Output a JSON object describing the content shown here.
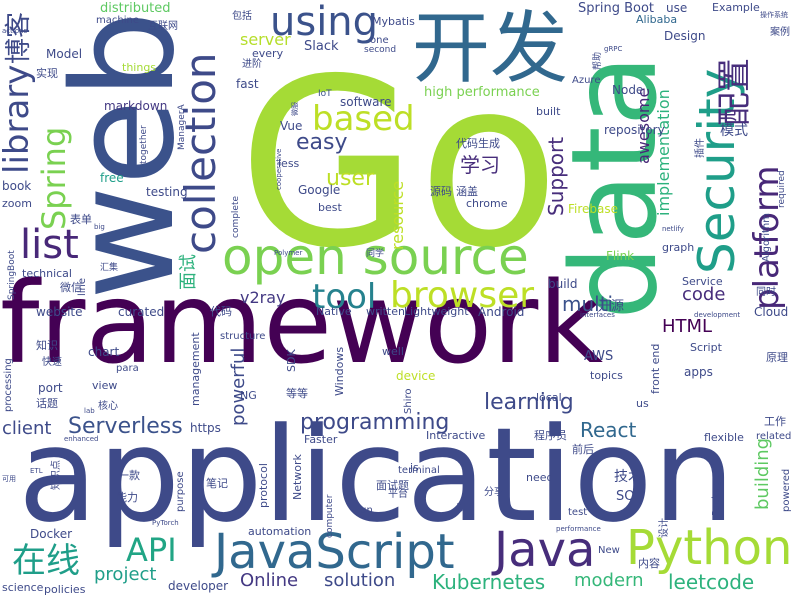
{
  "words": [
    {
      "text": "Go",
      "color": "#a5db36"
    },
    {
      "text": "framework",
      "color": "#440154"
    },
    {
      "text": "application",
      "color": "#3e4a89"
    },
    {
      "text": "web",
      "color": "#3b528b"
    },
    {
      "text": "data",
      "color": "#35b779"
    },
    {
      "text": "开发",
      "color": "#31688e"
    },
    {
      "text": "open source",
      "color": "#7ad151"
    },
    {
      "text": "JavaScript",
      "color": "#31688e"
    },
    {
      "text": "Java",
      "color": "#472d7b"
    },
    {
      "text": "Python",
      "color": "#a5db36"
    },
    {
      "text": "Security",
      "color": "#1f9e89"
    },
    {
      "text": "collection",
      "color": "#3e4a89"
    },
    {
      "text": "using",
      "color": "#3b528b"
    },
    {
      "text": "list",
      "color": "#482878"
    },
    {
      "text": "library",
      "color": "#3e4a89"
    },
    {
      "text": "browser",
      "color": "#bddf26"
    },
    {
      "text": "tool",
      "color": "#26828e"
    },
    {
      "text": "based",
      "color": "#bddf26"
    },
    {
      "text": "platform",
      "color": "#482878"
    },
    {
      "text": "配置",
      "color": "#472d7b"
    },
    {
      "text": "博客",
      "color": "#3e4a89"
    },
    {
      "text": "Spring",
      "color": "#7ad151"
    },
    {
      "text": "在线",
      "color": "#1f9e89"
    },
    {
      "text": "API",
      "color": "#21a585"
    },
    {
      "text": "programming",
      "color": "#3e4a89"
    },
    {
      "text": "Serverless",
      "color": "#3b528b"
    },
    {
      "text": "Kubernetes",
      "color": "#2db27d"
    },
    {
      "text": "leetcode",
      "color": "#2db27d"
    },
    {
      "text": "learning",
      "color": "#3e4a89"
    },
    {
      "text": "React",
      "color": "#31688e"
    },
    {
      "text": "user",
      "color": "#bddf26"
    },
    {
      "text": "easy",
      "color": "#3e4a89"
    },
    {
      "text": "HTML",
      "color": "#440154"
    },
    {
      "text": "code",
      "color": "#472d7b"
    },
    {
      "text": "multi",
      "color": "#3b528b"
    },
    {
      "text": "building",
      "color": "#5ec962"
    },
    {
      "text": "project",
      "color": "#1f9e89"
    },
    {
      "text": "solution",
      "color": "#3e4a89"
    },
    {
      "text": "modern",
      "color": "#35b779"
    },
    {
      "text": "Online",
      "color": "#443983"
    },
    {
      "text": "powerful",
      "color": "#3e4a89"
    },
    {
      "text": "client",
      "color": "#3e4a89"
    },
    {
      "text": "Support",
      "color": "#472d7b"
    },
    {
      "text": "学习",
      "color": "#472d7b"
    },
    {
      "text": "implementation",
      "color": "#2db27d"
    },
    {
      "text": "resource",
      "color": "#bddf26"
    },
    {
      "text": "面试",
      "color": "#2db27d"
    },
    {
      "text": "v2ray",
      "color": "#443983"
    },
    {
      "text": "server",
      "color": "#b5de2b"
    },
    {
      "text": "awesome",
      "color": "#482878"
    },
    {
      "text": "Spring Boot",
      "color": "#3e4a89"
    },
    {
      "text": "distributed",
      "color": "#5ec962"
    },
    {
      "text": "Slack",
      "color": "#3e4a89"
    },
    {
      "text": "Mybatis",
      "color": "#3e4a89"
    },
    {
      "text": "Example",
      "color": "#3e4a89"
    },
    {
      "text": "Alibaba",
      "color": "#31688e"
    },
    {
      "text": "Design",
      "color": "#3e4a89"
    },
    {
      "text": "Model",
      "color": "#3e4a89"
    },
    {
      "text": "things",
      "color": "#a5db36"
    },
    {
      "text": "markdown",
      "color": "#443983"
    },
    {
      "text": "fast",
      "color": "#3e4a89"
    },
    {
      "text": "every",
      "color": "#3e4a89"
    },
    {
      "text": "IoT",
      "color": "#3b528b"
    },
    {
      "text": "software",
      "color": "#3e4a89"
    },
    {
      "text": "high performance",
      "color": "#7ad151"
    },
    {
      "text": "Node",
      "color": "#3e4a89"
    },
    {
      "text": "Vue",
      "color": "#3e4a89"
    },
    {
      "text": "less",
      "color": "#3e4a89"
    },
    {
      "text": "Google",
      "color": "#3e4a89"
    },
    {
      "text": "best",
      "color": "#3e4a89"
    },
    {
      "text": "chrome",
      "color": "#3e4a89"
    },
    {
      "text": "Firebase",
      "color": "#bddf26"
    },
    {
      "text": "Flink",
      "color": "#7ad151"
    },
    {
      "text": "repository",
      "color": "#3e4a89"
    },
    {
      "text": "use",
      "color": "#3e4a89"
    },
    {
      "text": "built",
      "color": "#3e4a89"
    },
    {
      "text": "模式",
      "color": "#3e4a89"
    },
    {
      "text": "实现",
      "color": "#3e4a89"
    },
    {
      "text": "book",
      "color": "#3e4a89"
    },
    {
      "text": "free",
      "color": "#1f9e89"
    },
    {
      "text": "testing",
      "color": "#3e4a89"
    },
    {
      "text": "zoom",
      "color": "#3e4a89"
    },
    {
      "text": "表单",
      "color": "#3e4a89"
    },
    {
      "text": "technical",
      "color": "#3e4a89"
    },
    {
      "text": "website",
      "color": "#3e4a89"
    },
    {
      "text": "curated",
      "color": "#3e4a89"
    },
    {
      "text": "代码",
      "color": "#3e4a89"
    },
    {
      "text": "structure",
      "color": "#3e4a89"
    },
    {
      "text": "chart",
      "color": "#3e4a89"
    },
    {
      "text": "知识",
      "color": "#3e4a89"
    },
    {
      "text": "port",
      "color": "#3e4a89"
    },
    {
      "text": "view",
      "color": "#3e4a89"
    },
    {
      "text": "话题",
      "color": "#3e4a89"
    },
    {
      "text": "processing",
      "color": "#3e4a89"
    },
    {
      "text": "management",
      "color": "#3e4a89"
    },
    {
      "text": "核心",
      "color": "#3e4a89"
    },
    {
      "text": "https",
      "color": "#3e4a89"
    },
    {
      "text": "NG",
      "color": "#3e4a89"
    },
    {
      "text": "purpose",
      "color": "#3e4a89"
    },
    {
      "text": "能力",
      "color": "#3e4a89"
    },
    {
      "text": "一款",
      "color": "#3e4a89"
    },
    {
      "text": "笔记",
      "color": "#3e4a89"
    },
    {
      "text": "Docker",
      "color": "#3e4a89"
    },
    {
      "text": "science",
      "color": "#3e4a89"
    },
    {
      "text": "policies",
      "color": "#3e4a89"
    },
    {
      "text": "developer",
      "color": "#3e4a89"
    },
    {
      "text": "automation",
      "color": "#3e4a89"
    },
    {
      "text": "Network",
      "color": "#3e4a89"
    },
    {
      "text": "protocol",
      "color": "#3e4a89"
    },
    {
      "text": "Faster",
      "color": "#3e4a89"
    },
    {
      "text": "Windows",
      "color": "#3e4a89"
    },
    {
      "text": "SDK",
      "color": "#3e4a89"
    },
    {
      "text": "para",
      "color": "#3e4a89"
    },
    {
      "text": "well",
      "color": "#3e4a89"
    },
    {
      "text": "device",
      "color": "#bddf26"
    },
    {
      "text": "Shiro",
      "color": "#3e4a89"
    },
    {
      "text": "local",
      "color": "#3e4a89"
    },
    {
      "text": "Interactive",
      "color": "#3e4a89"
    },
    {
      "text": "程序员",
      "color": "#3e4a89"
    },
    {
      "text": "前后",
      "color": "#3e4a89"
    },
    {
      "text": "技术",
      "color": "#3e4a89"
    },
    {
      "text": "SQL",
      "color": "#3e4a89"
    },
    {
      "text": "need",
      "color": "#3e4a89"
    },
    {
      "text": "面试题",
      "color": "#3e4a89"
    },
    {
      "text": "分享",
      "color": "#3e4a89"
    },
    {
      "text": "3D",
      "color": "#3e4a89"
    },
    {
      "text": "test",
      "color": "#3e4a89"
    },
    {
      "text": "run",
      "color": "#3e4a89"
    },
    {
      "text": "AWS",
      "color": "#3e4a89"
    },
    {
      "text": "apps",
      "color": "#3e4a89"
    },
    {
      "text": "topics",
      "color": "#3e4a89"
    },
    {
      "text": "front end",
      "color": "#3e4a89"
    },
    {
      "text": "Script",
      "color": "#3e4a89"
    },
    {
      "text": "原理",
      "color": "#3e4a89"
    },
    {
      "text": "工作",
      "color": "#3e4a89"
    },
    {
      "text": "related",
      "color": "#3e4a89"
    },
    {
      "text": "flexible",
      "color": "#3e4a89"
    },
    {
      "text": "Package",
      "color": "#3e4a89"
    },
    {
      "text": "powered",
      "color": "#3e4a89"
    },
    {
      "text": "内容",
      "color": "#3e4a89"
    },
    {
      "text": "New",
      "color": "#3e4a89"
    },
    {
      "text": "设计",
      "color": "#3e4a89"
    },
    {
      "text": "Service",
      "color": "#3e4a89"
    },
    {
      "text": "Cloud",
      "color": "#3e4a89"
    },
    {
      "text": "同时",
      "color": "#3e4a89"
    },
    {
      "text": "开源",
      "color": "#3e4a89"
    },
    {
      "text": "Android",
      "color": "#3e4a89"
    },
    {
      "text": "written",
      "color": "#3e4a89"
    },
    {
      "text": "Lightweight",
      "color": "#3e4a89"
    },
    {
      "text": "Native",
      "color": "#3e4a89"
    },
    {
      "text": "build",
      "color": "#3e4a89"
    },
    {
      "text": "graph",
      "color": "#3e4a89"
    },
    {
      "text": "Algorithm",
      "color": "#3e4a89"
    },
    {
      "text": "required",
      "color": "#3e4a89"
    },
    {
      "text": "代码生成",
      "color": "#3e4a89"
    },
    {
      "text": "源码",
      "color": "#3e4a89"
    },
    {
      "text": "涵盖",
      "color": "#3e4a89"
    },
    {
      "text": "插件",
      "color": "#3e4a89"
    },
    {
      "text": "案例",
      "color": "#3e4a89"
    },
    {
      "text": "包括",
      "color": "#3e4a89"
    },
    {
      "text": "互联网",
      "color": "#3e4a89"
    },
    {
      "text": "machine",
      "color": "#3e4a89"
    },
    {
      "text": "进阶",
      "color": "#3e4a89"
    },
    {
      "text": "one",
      "color": "#3e4a89"
    },
    {
      "text": "second",
      "color": "#3e4a89"
    },
    {
      "text": "帮助",
      "color": "#3e4a89"
    },
    {
      "text": "Azure",
      "color": "#3e4a89"
    },
    {
      "text": "complete",
      "color": "#3e4a89"
    },
    {
      "text": "together",
      "color": "#3e4a89"
    },
    {
      "text": "同学",
      "color": "#3e4a89"
    },
    {
      "text": "汇集",
      "color": "#3e4a89"
    },
    {
      "text": "微信",
      "color": "#3e4a89"
    },
    {
      "text": "快速",
      "color": "#3e4a89"
    },
    {
      "text": "等等",
      "color": "#3e4a89"
    },
    {
      "text": "js",
      "color": "#3e4a89"
    },
    {
      "text": "us",
      "color": "#3e4a89"
    },
    {
      "text": "平台",
      "color": "#3e4a89"
    },
    {
      "text": "知识点",
      "color": "#3e4a89"
    },
    {
      "text": "computer",
      "color": "#3e4a89"
    },
    {
      "text": "terminal",
      "color": "#3e4a89"
    },
    {
      "text": "line",
      "color": "#3e4a89"
    },
    {
      "text": "SpringBoot",
      "color": "#3e4a89"
    },
    {
      "text": "ManagerA",
      "color": "#3e4a89"
    },
    {
      "text": "actions",
      "color": "#3e4a89"
    },
    {
      "text": "操作系统",
      "color": "#3e4a89"
    },
    {
      "text": "big",
      "color": "#3e4a89"
    },
    {
      "text": "netlify",
      "color": "#3e4a89"
    },
    {
      "text": "Polymer",
      "color": "#3e4a89"
    },
    {
      "text": "interfaces",
      "color": "#3e4a89"
    },
    {
      "text": "development",
      "color": "#3e4a89"
    },
    {
      "text": "lab",
      "color": "#3e4a89"
    },
    {
      "text": "enhanced",
      "color": "#3e4a89"
    },
    {
      "text": "ETL",
      "color": "#3e4a89"
    },
    {
      "text": "可用",
      "color": "#3e4a89"
    },
    {
      "text": "PyTorch",
      "color": "#3e4a89"
    },
    {
      "text": "performance",
      "color": "#3e4a89"
    },
    {
      "text": "cooperative",
      "color": "#3e4a89"
    },
    {
      "text": "gRPC",
      "color": "#3e4a89"
    },
    {
      "text": "微服",
      "color": "#3e4a89"
    }
  ]
}
